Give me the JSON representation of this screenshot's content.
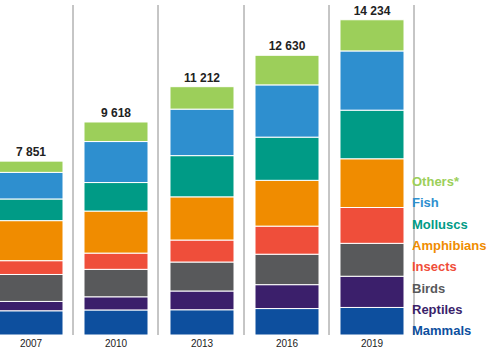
{
  "chart_data": {
    "type": "bar",
    "stacked": true,
    "tick_labels": "x",
    "categories": [
      "2007",
      "2010",
      "2013",
      "2016",
      "2019"
    ],
    "ylim": [
      0,
      14900
    ],
    "legend": "right",
    "series": [
      {
        "name": "Mammals",
        "color": "#0d4f9e",
        "values": [
          1094,
          1131,
          1140,
          1194,
          1244
        ]
      },
      {
        "name": "Reptiles",
        "color": "#3b1f6b",
        "values": [
          422,
          594,
          847,
          1079,
          1409
        ]
      },
      {
        "name": "Birds",
        "color": "#58595b",
        "values": [
          1217,
          1240,
          1308,
          1375,
          1486
        ]
      },
      {
        "name": "Insects",
        "color": "#ef4e3a",
        "values": [
          623,
          733,
          993,
          1268,
          1618
        ]
      },
      {
        "name": "Amphibians",
        "color": "#f08c00",
        "values": [
          1808,
          1898,
          1950,
          2068,
          2200
        ]
      },
      {
        "name": "Molluscs",
        "color": "#009b86",
        "values": [
          978,
          1288,
          1861,
          1950,
          2195
        ]
      },
      {
        "name": "Fish",
        "color": "#2e8fcf",
        "values": [
          1201,
          1851,
          2100,
          2359,
          2674
        ]
      },
      {
        "name": "Others*",
        "color": "#9ccf5a",
        "values": [
          508,
          883,
          1013,
          1337,
          1408
        ]
      }
    ],
    "totals": {
      "values": [
        7851,
        9618,
        11212,
        12630,
        14234
      ],
      "value_labels": [
        "7 851",
        "9 618",
        "11 212",
        "12 630",
        "14 234"
      ]
    }
  }
}
